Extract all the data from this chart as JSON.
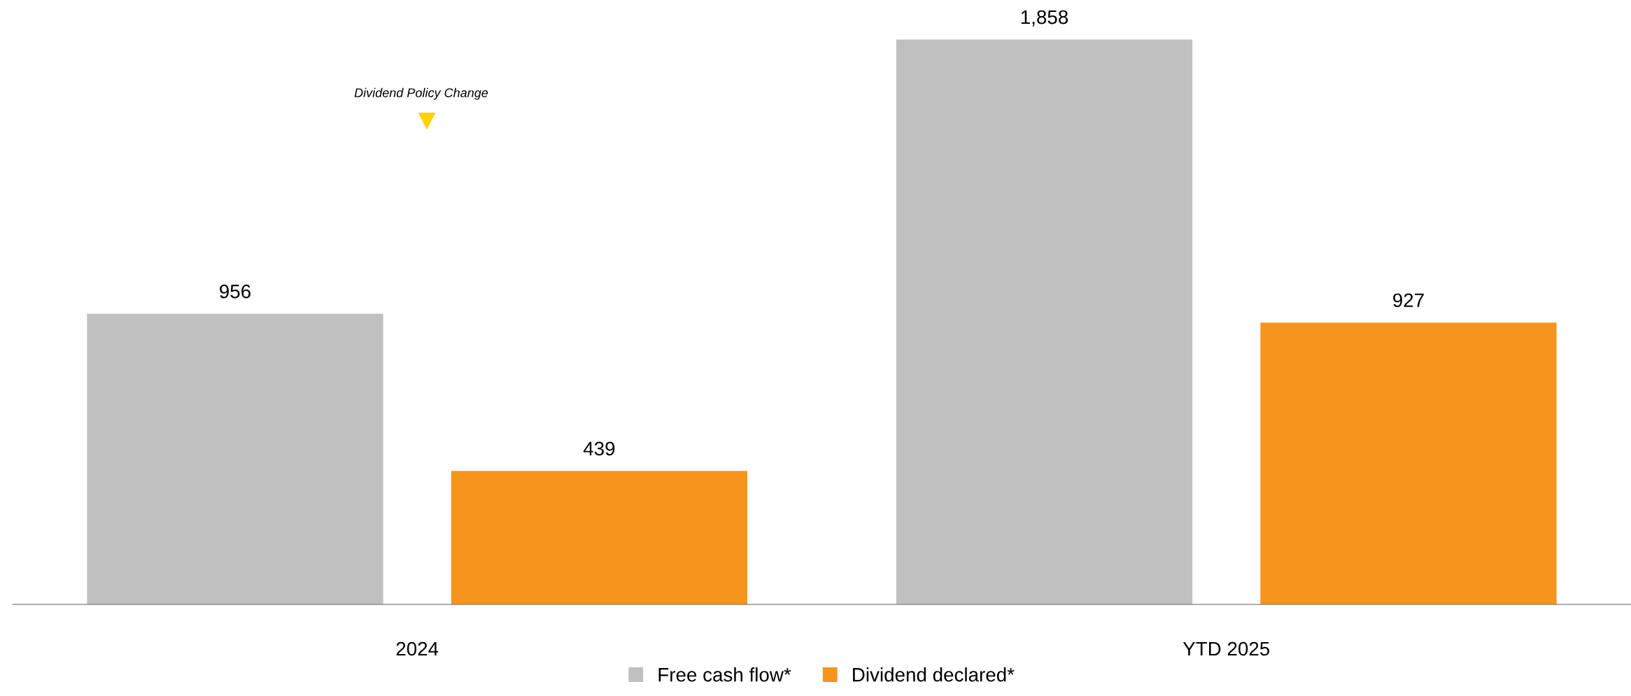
{
  "chart_data": {
    "type": "bar",
    "categories": [
      "2024",
      "YTD 2025"
    ],
    "series": [
      {
        "name": "Free cash flow*",
        "color": "#c0c0c0",
        "values": [
          956,
          1858
        ],
        "value_labels": [
          "956",
          "1,858"
        ]
      },
      {
        "name": "Dividend declared*",
        "color": "#f7941d",
        "values": [
          439,
          927
        ],
        "value_labels": [
          "439",
          "927"
        ]
      }
    ],
    "tick_labels": "x",
    "grid": false,
    "legend": "bottom",
    "annotations": [
      "Dividend Policy Change"
    ]
  }
}
